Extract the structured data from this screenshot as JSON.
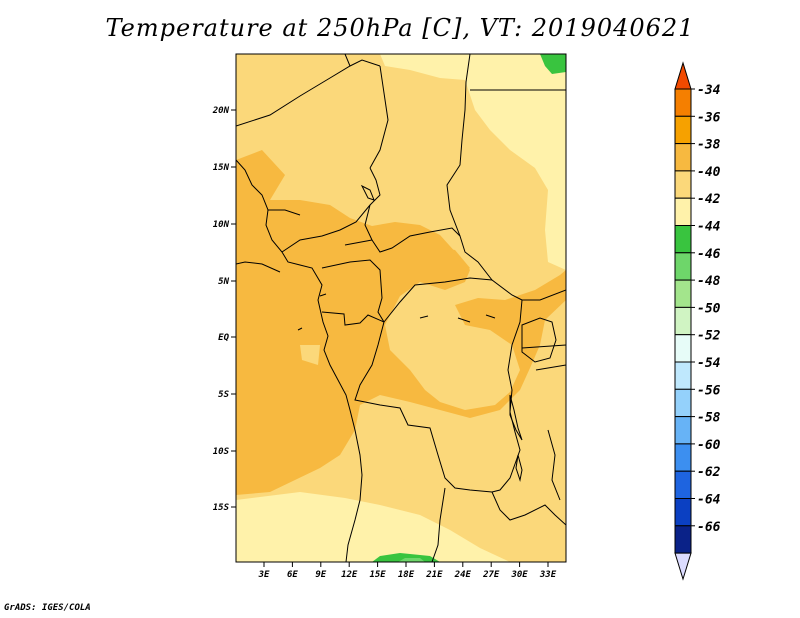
{
  "title": "Temperature at 250hPa [C], VT: 2019040621",
  "credit": "GrADS: IGES/COLA",
  "map": {
    "lat_labels": [
      "20N",
      "15N",
      "10N",
      "5N",
      "EQ",
      "5S",
      "10S",
      "15S"
    ],
    "lon_labels": [
      "3E",
      "6E",
      "9E",
      "12E",
      "15E",
      "18E",
      "21E",
      "24E",
      "27E",
      "30E",
      "33E"
    ]
  },
  "colorbar": {
    "levels": [
      "-34",
      "-36",
      "-38",
      "-40",
      "-42",
      "-44",
      "-46",
      "-48",
      "-50",
      "-52",
      "-54",
      "-56",
      "-58",
      "-60",
      "-62",
      "-64",
      "-66"
    ],
    "colors": [
      "#f24a00",
      "#f57f00",
      "#f6a100",
      "#f7b940",
      "#fbd87a",
      "#fff2aa",
      "#39c43f",
      "#6ed66a",
      "#a3e58c",
      "#d0f4c3",
      "#e7fcf8",
      "#bfe8fd",
      "#94d1fb",
      "#67b3f6",
      "#3c8ff0",
      "#1e64e0",
      "#0b40c2",
      "#0a2288",
      "#dcdcff"
    ]
  }
}
